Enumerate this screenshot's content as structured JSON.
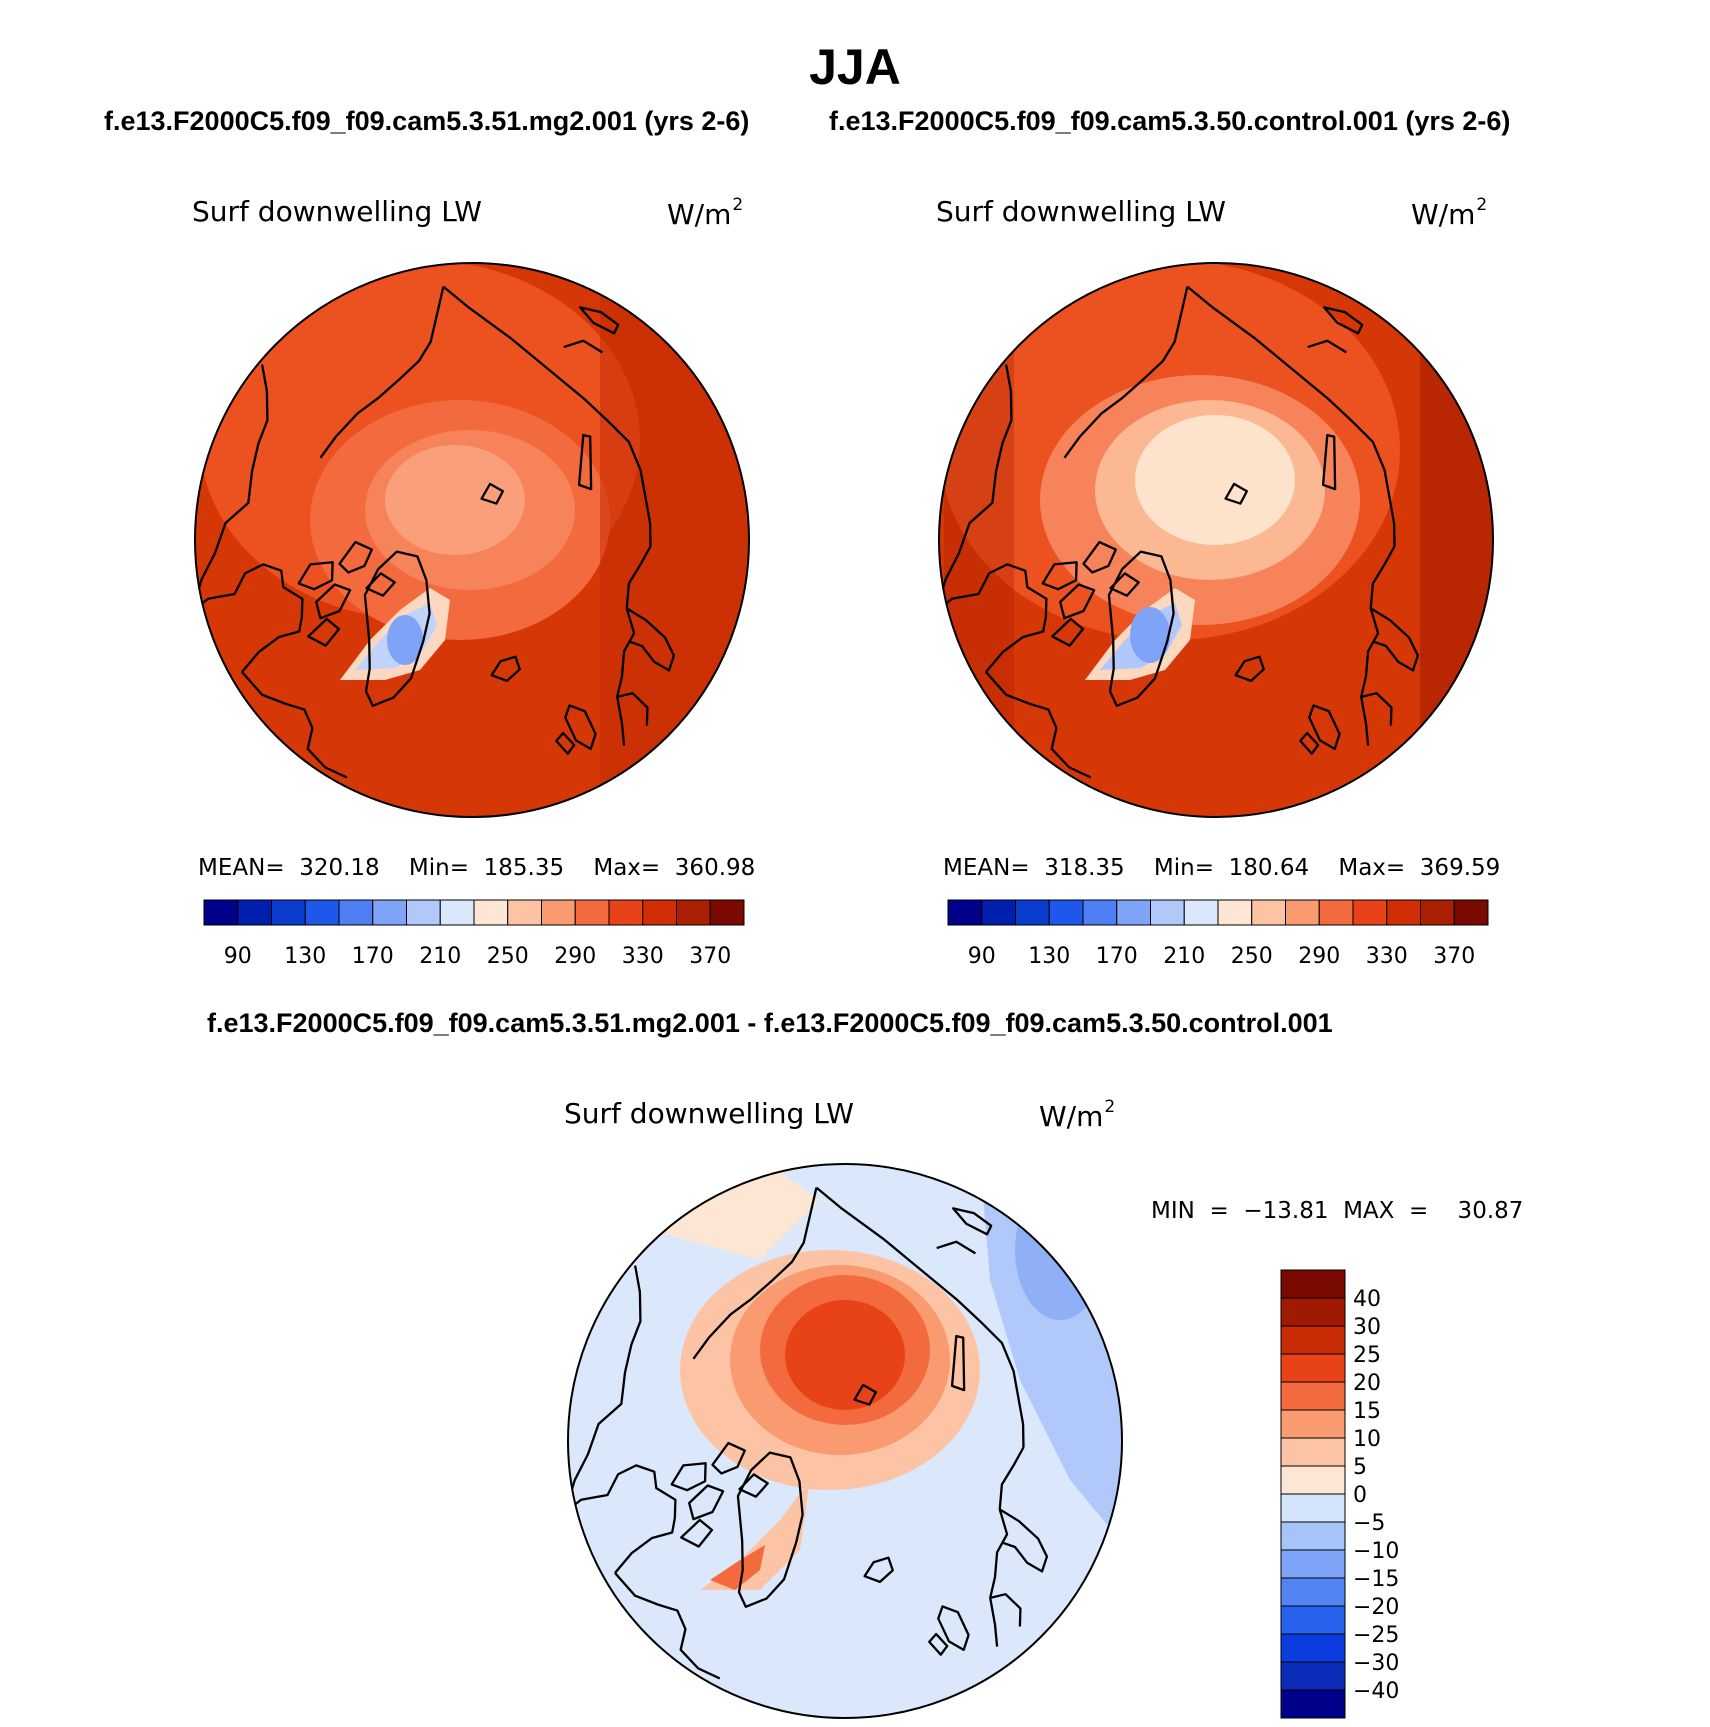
{
  "header": {
    "title": "JJA",
    "case_left": "f.e13.F2000C5.f09_f09.cam5.3.51.mg2.001 (yrs 2-6)",
    "case_right": "f.e13.F2000C5.f09_f09.cam5.3.50.control.001 (yrs 2-6)",
    "diff_title": "f.e13.F2000C5.f09_f09.cam5.3.51.mg2.001 - f.e13.F2000C5.f09_f09.cam5.3.50.control.001"
  },
  "panels": {
    "left": {
      "label": "Surf downwelling LW",
      "units": "W/m",
      "units_exp": "2",
      "stats": "MEAN=  320.18    Min=  185.35    Max=  360.98"
    },
    "right": {
      "label": "Surf downwelling LW",
      "units": "W/m",
      "units_exp": "2",
      "stats": "MEAN=  318.35    Min=  180.64    Max=  369.59"
    },
    "diff": {
      "label": "Surf downwelling LW",
      "units": "W/m",
      "units_exp": "2",
      "stats": "MIN  =  −13.81  MAX  =    30.87"
    }
  },
  "colorbars": {
    "abs": {
      "colors": [
        "#00008b",
        "#001fae",
        "#0a3ccf",
        "#2057eb",
        "#4f7ff4",
        "#7fa3f7",
        "#b1c8fa",
        "#dbe8fb",
        "#fde6d3",
        "#fcc4a5",
        "#f99a70",
        "#f36a3e",
        "#e84318",
        "#d12e05",
        "#ab1f02",
        "#7a0a00"
      ],
      "labels": [
        "90",
        "130",
        "170",
        "210",
        "250",
        "290",
        "330",
        "370"
      ]
    },
    "diff": {
      "colors": [
        "#00008b",
        "#0a2cb8",
        "#0a3cdf",
        "#2a62f0",
        "#5285f3",
        "#7da4f6",
        "#a6c4f8",
        "#d3e4fb",
        "#fde6d3",
        "#fcc4a5",
        "#f99a70",
        "#f36a3e",
        "#e84318",
        "#c92b05",
        "#a01a02",
        "#7a0a00"
      ],
      "labels": [
        "40",
        "30",
        "25",
        "20",
        "15",
        "10",
        "5",
        "0",
        "−5",
        "−10",
        "−15",
        "−20",
        "−25",
        "−30",
        "−40"
      ]
    }
  }
}
